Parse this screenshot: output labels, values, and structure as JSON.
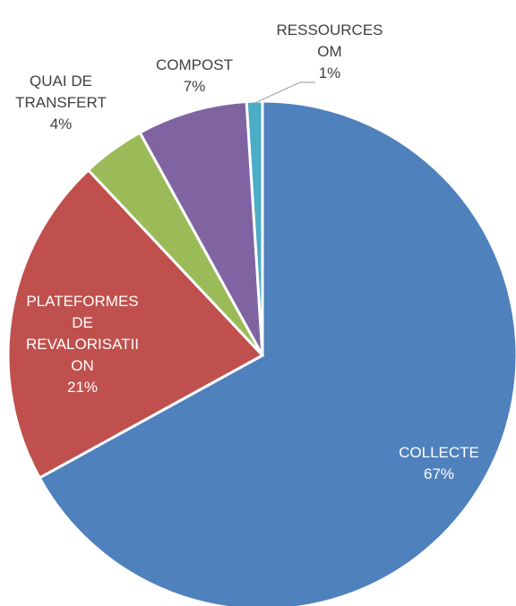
{
  "chart_data": {
    "type": "pie",
    "categories": [
      "COLLECTE",
      "PLATEFORMES DE REVALORISATIION",
      "QUAI DE TRANSFERT",
      "COMPOST",
      "RESSOURCES OM"
    ],
    "values": [
      67,
      21,
      4,
      7,
      1
    ],
    "value_labels": [
      "67%",
      "21%",
      "4%",
      "7%",
      "1%"
    ],
    "colors": [
      "#4f81bd",
      "#c0504d",
      "#9bbb59",
      "#8064a2",
      "#4bacc6"
    ]
  }
}
